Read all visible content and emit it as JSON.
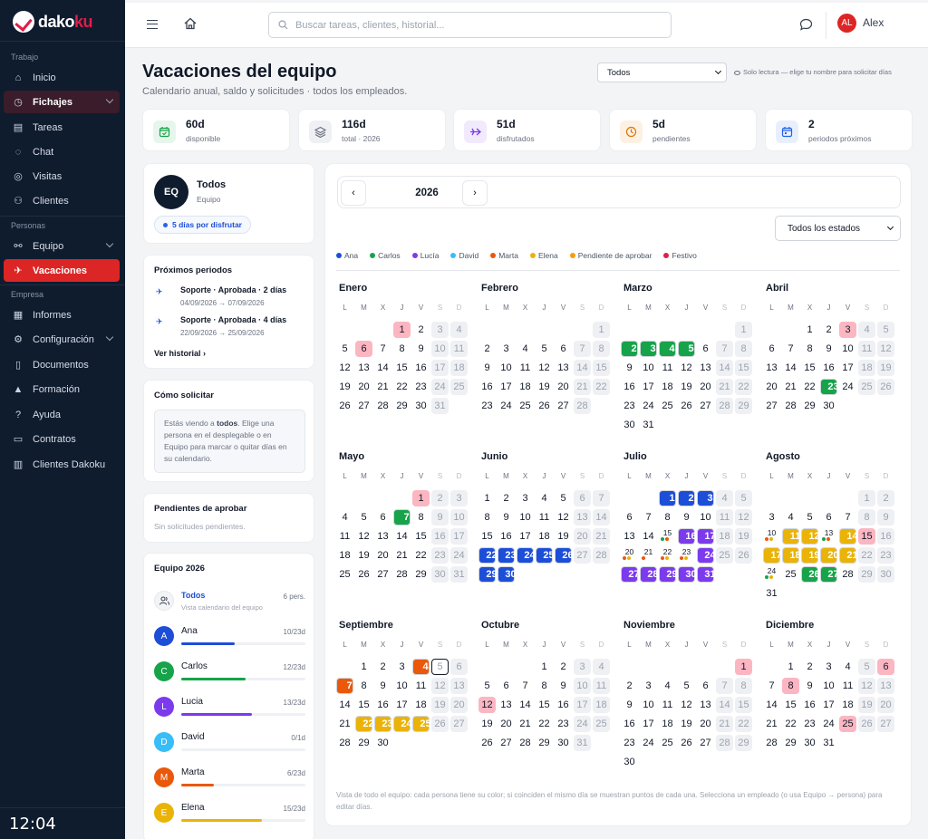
{
  "app": {
    "brand_a": "dako",
    "brand_b": "ku"
  },
  "sidebar": {
    "sections": [
      {
        "label": "Trabajo",
        "items": [
          {
            "label": "Inicio",
            "icon": "home-icon"
          },
          {
            "label": "Fichajes",
            "icon": "clock-icon",
            "expandable": true,
            "open": true
          },
          {
            "label": "Tareas",
            "icon": "clipboard-icon"
          },
          {
            "label": "Chat",
            "icon": "chat-icon"
          },
          {
            "label": "Visitas",
            "icon": "pin-icon"
          },
          {
            "label": "Clientes",
            "icon": "users-icon"
          }
        ]
      },
      {
        "label": "Personas",
        "items": [
          {
            "label": "Equipo",
            "icon": "team-icon",
            "expandable": true
          },
          {
            "label": "Vacaciones",
            "icon": "plane-icon",
            "active": true
          }
        ]
      },
      {
        "label": "Empresa",
        "items": [
          {
            "label": "Informes",
            "icon": "report-icon"
          },
          {
            "label": "Configuración",
            "icon": "gear-icon",
            "expandable": true
          },
          {
            "label": "Documentos",
            "icon": "document-icon"
          },
          {
            "label": "Formación",
            "icon": "graduation-icon"
          },
          {
            "label": "Ayuda",
            "icon": "help-icon"
          },
          {
            "label": "Contratos",
            "icon": "contract-icon"
          },
          {
            "label": "Clientes Dakoku",
            "icon": "building-icon"
          }
        ]
      }
    ],
    "clock": "12:04"
  },
  "topbar": {
    "search_placeholder": "Buscar tareas, clientes, historial...",
    "user_initials": "AL",
    "user_name": "Alex",
    "avatar_color": "#dc2626"
  },
  "page": {
    "title": "Vacaciones del equipo",
    "subtitle": "Calendario anual, saldo y solicitudes · todos los empleados.",
    "employee_select": "Todos",
    "readonly_note": "Solo lectura — elige tu nombre para solicitar días"
  },
  "stats": [
    {
      "value": "60d",
      "label": "disponible",
      "icon": "calendar-check-icon",
      "bg": "#e7f6ec",
      "fg": "#16a34a"
    },
    {
      "value": "116d",
      "label": "total · 2026",
      "icon": "layers-icon",
      "bg": "#eef0f3",
      "fg": "#6b7280"
    },
    {
      "value": "51d",
      "label": "disfrutados",
      "icon": "plane-icon",
      "bg": "#f1eafd",
      "fg": "#7c3aed"
    },
    {
      "value": "5d",
      "label": "pendientes",
      "icon": "clock-icon",
      "bg": "#fdf1e3",
      "fg": "#d97706"
    },
    {
      "value": "2",
      "label": "periodos próximos",
      "icon": "calendar-icon",
      "bg": "#e8effc",
      "fg": "#2563eb"
    }
  ],
  "profile": {
    "initials": "EQ",
    "name": "Todos",
    "role": "Equipo",
    "pill": "5 días por disfrutar"
  },
  "upcoming": {
    "title": "Próximos periodos",
    "items": [
      {
        "title": "Soporte · Aprobada · 2 días",
        "dates": "04/09/2026 → 07/09/2026"
      },
      {
        "title": "Soporte · Aprobada · 4 días",
        "dates": "22/09/2026 → 25/09/2026"
      }
    ],
    "link": "Ver historial"
  },
  "howto": {
    "title": "Cómo solicitar",
    "text_a": "Estás viendo a ",
    "text_b": "todos",
    "text_c": ". Elige una persona en el desplegable o en Equipo para marcar o quitar días en su calendario."
  },
  "pending": {
    "title": "Pendientes de aprobar",
    "empty": "Sin solicitudes pendientes."
  },
  "team": {
    "title": "Equipo 2026",
    "all": {
      "name": "Todos",
      "sub": "Vista calendario del equipo",
      "count": "6 pers."
    },
    "people": [
      {
        "initial": "A",
        "name": "Ana",
        "count": "10/23d",
        "color": "#1d4ed8",
        "progress": 0.43
      },
      {
        "initial": "C",
        "name": "Carlos",
        "count": "12/23d",
        "color": "#16a34a",
        "progress": 0.52
      },
      {
        "initial": "L",
        "name": "Lucia",
        "count": "13/23d",
        "color": "#7c3aed",
        "progress": 0.57
      },
      {
        "initial": "D",
        "name": "David",
        "count": "0/1d",
        "color": "#38bdf8",
        "progress": 0
      },
      {
        "initial": "M",
        "name": "Marta",
        "count": "6/23d",
        "color": "#ea580c",
        "progress": 0.26
      },
      {
        "initial": "E",
        "name": "Elena",
        "count": "15/23d",
        "color": "#eab308",
        "progress": 0.65
      }
    ]
  },
  "calendar": {
    "year": "2026",
    "status_select": "Todos los estados",
    "weekdays": [
      "L",
      "M",
      "X",
      "J",
      "V",
      "S",
      "D"
    ],
    "legend": [
      {
        "label": "Ana",
        "color": "#1d4ed8"
      },
      {
        "label": "Carlos",
        "color": "#16a34a"
      },
      {
        "label": "Lucía",
        "color": "#7c3aed"
      },
      {
        "label": "David",
        "color": "#38bdf8"
      },
      {
        "label": "Marta",
        "color": "#ea580c"
      },
      {
        "label": "Elena",
        "color": "#eab308"
      },
      {
        "label": "Pendiente de aprobar",
        "color": "#f59e0b"
      },
      {
        "label": "Festivo",
        "color": "#e11d48"
      }
    ],
    "colors": {
      "A": "#1d4ed8",
      "C": "#16a34a",
      "L": "#7c3aed",
      "M": "#ea580c",
      "E": "#eab308",
      "P": "#eab308"
    },
    "months": [
      {
        "name": "Enero",
        "offset": 3,
        "days": 31,
        "holidays": [
          1,
          6
        ],
        "marks": {}
      },
      {
        "name": "Febrero",
        "offset": 6,
        "days": 28,
        "holidays": [],
        "marks": {}
      },
      {
        "name": "Marzo",
        "offset": 6,
        "days": 31,
        "holidays": [],
        "marks": {
          "2": "C",
          "3": "C",
          "4": "C",
          "5": "C"
        }
      },
      {
        "name": "Abril",
        "offset": 2,
        "days": 30,
        "holidays": [
          3
        ],
        "marks": {
          "23": "C"
        }
      },
      {
        "name": "Mayo",
        "offset": 4,
        "days": 31,
        "holidays": [
          1
        ],
        "marks": {
          "7": "C"
        }
      },
      {
        "name": "Junio",
        "offset": 0,
        "days": 30,
        "holidays": [],
        "marks": {
          "22": "A",
          "23": "A",
          "24": "A",
          "25": "A",
          "26": "A",
          "29": "A",
          "30": "A"
        }
      },
      {
        "name": "Julio",
        "offset": 2,
        "days": 31,
        "holidays": [],
        "marks": {
          "1": "A",
          "2": "A",
          "3": "A",
          "16": "L",
          "17": "L",
          "24": "L",
          "27": "L",
          "28": "L",
          "29": "L",
          "30": "L",
          "31": "L"
        },
        "dots": {
          "15": [
            "C",
            "M"
          ],
          "20": [
            "M",
            "E"
          ],
          "21": [
            "M"
          ],
          "22": [
            "M",
            "E"
          ],
          "23": [
            "M",
            "E"
          ]
        }
      },
      {
        "name": "Agosto",
        "offset": 5,
        "days": 31,
        "holidays": [
          15
        ],
        "marks": {
          "11": "E",
          "12": "E",
          "14": "E",
          "17": "E",
          "18": "E",
          "19": "E",
          "20": "E",
          "21": "E",
          "26": "C",
          "27": "C"
        },
        "dots": {
          "10": [
            "M",
            "E"
          ],
          "13": [
            "C",
            "M"
          ],
          "24": [
            "C",
            "E"
          ]
        }
      },
      {
        "name": "Septiembre",
        "offset": 1,
        "days": 30,
        "holidays": [],
        "marks": {
          "4": "M",
          "7": "M",
          "22": "E",
          "23": "E",
          "24": "E",
          "25": "E"
        },
        "today": 5
      },
      {
        "name": "Octubre",
        "offset": 3,
        "days": 31,
        "holidays": [
          12
        ],
        "marks": {}
      },
      {
        "name": "Noviembre",
        "offset": 6,
        "days": 30,
        "holidays": [
          1
        ],
        "marks": {}
      },
      {
        "name": "Diciembre",
        "offset": 1,
        "days": 31,
        "holidays": [
          6,
          8,
          25
        ],
        "marks": {}
      }
    ],
    "footnote": "Vista de todo el equipo: cada persona tiene su color; si coinciden el mismo día se muestran puntos de cada una. Selecciona un empleado (o usa Equipo → persona) para editar días."
  }
}
